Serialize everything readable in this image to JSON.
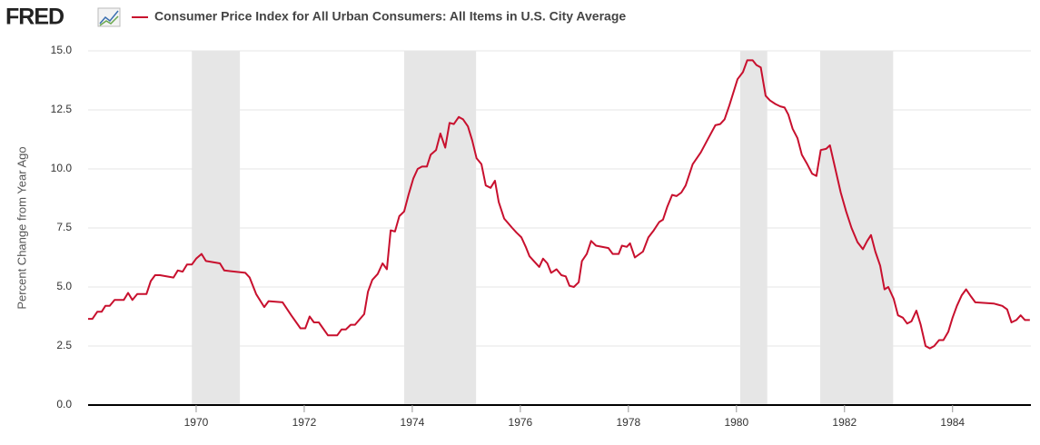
{
  "logo": "FRED",
  "chart_data": {
    "type": "line",
    "ylabel": "Percent Change from Year Ago",
    "x": [
      1968.0,
      1968.08,
      1968.17,
      1968.25,
      1968.32,
      1968.4,
      1968.49,
      1968.57,
      1968.66,
      1968.74,
      1968.82,
      1968.91,
      1968.99,
      1969.08,
      1969.16,
      1969.24,
      1969.33,
      1969.58,
      1969.66,
      1969.75,
      1969.83,
      1969.92,
      1970.0,
      1970.1,
      1970.18,
      1970.44,
      1970.52,
      1970.91,
      1970.99,
      1971.11,
      1971.26,
      1971.34,
      1971.6,
      1971.76,
      1971.93,
      1972.02,
      1972.1,
      1972.18,
      1972.27,
      1972.44,
      1972.61,
      1972.69,
      1972.77,
      1972.86,
      1972.94,
      1973.11,
      1973.18,
      1973.26,
      1973.36,
      1973.45,
      1973.53,
      1973.6,
      1973.68,
      1973.76,
      1973.85,
      1973.93,
      1974.02,
      1974.1,
      1974.18,
      1974.27,
      1974.34,
      1974.44,
      1974.52,
      1974.61,
      1974.69,
      1974.77,
      1974.86,
      1974.94,
      1975.03,
      1975.11,
      1975.19,
      1975.28,
      1975.36,
      1975.45,
      1975.53,
      1975.6,
      1975.7,
      1975.85,
      1975.93,
      1976.02,
      1976.1,
      1976.17,
      1976.25,
      1976.35,
      1976.42,
      1976.5,
      1976.57,
      1976.67,
      1976.76,
      1976.84,
      1976.91,
      1976.99,
      1977.08,
      1977.14,
      1977.23,
      1977.31,
      1977.4,
      1977.63,
      1977.71,
      1977.82,
      1977.88,
      1977.97,
      1978.03,
      1978.12,
      1978.27,
      1978.37,
      1978.47,
      1978.57,
      1978.64,
      1978.72,
      1978.81,
      1978.89,
      1978.98,
      1979.06,
      1979.19,
      1979.34,
      1979.48,
      1979.61,
      1979.7,
      1979.78,
      1979.87,
      1980.02,
      1980.12,
      1980.2,
      1980.3,
      1980.37,
      1980.45,
      1980.54,
      1980.62,
      1980.72,
      1980.81,
      1980.89,
      1980.96,
      1981.04,
      1981.13,
      1981.21,
      1981.31,
      1981.4,
      1981.48,
      1981.56,
      1981.66,
      1981.73,
      1981.83,
      1981.93,
      1982.03,
      1982.13,
      1982.24,
      1982.34,
      1982.42,
      1982.49,
      1982.57,
      1982.66,
      1982.74,
      1982.81,
      1982.91,
      1982.99,
      1983.08,
      1983.16,
      1983.24,
      1983.33,
      1983.41,
      1983.5,
      1983.58,
      1983.66,
      1983.75,
      1983.83,
      1983.92,
      1984.0,
      1984.08,
      1984.17,
      1984.25,
      1984.34,
      1984.42,
      1984.76,
      1984.84,
      1984.92,
      1985.01,
      1985.09,
      1985.18,
      1985.26,
      1985.34,
      1985.43
    ],
    "series": [
      {
        "name": "Consumer Price Index for All Urban Consumers: All Items in U.S. City Average",
        "color": "#c8102e",
        "values": [
          3.65,
          3.65,
          3.95,
          3.95,
          4.2,
          4.2,
          4.45,
          4.45,
          4.45,
          4.75,
          4.45,
          4.7,
          4.7,
          4.7,
          5.25,
          5.5,
          5.5,
          5.4,
          5.7,
          5.65,
          5.95,
          5.95,
          6.2,
          6.4,
          6.1,
          6.0,
          5.7,
          5.6,
          5.4,
          4.7,
          4.15,
          4.4,
          4.35,
          3.8,
          3.25,
          3.25,
          3.75,
          3.5,
          3.5,
          2.95,
          2.95,
          3.2,
          3.2,
          3.4,
          3.4,
          3.85,
          4.8,
          5.3,
          5.55,
          6.0,
          5.75,
          7.4,
          7.35,
          8.0,
          8.2,
          8.9,
          9.6,
          10.0,
          10.1,
          10.1,
          10.6,
          10.8,
          11.5,
          10.9,
          11.95,
          11.9,
          12.2,
          12.1,
          11.8,
          11.2,
          10.45,
          10.2,
          9.3,
          9.2,
          9.5,
          8.6,
          7.9,
          7.5,
          7.3,
          7.1,
          6.7,
          6.3,
          6.1,
          5.85,
          6.2,
          6.0,
          5.6,
          5.75,
          5.5,
          5.45,
          5.05,
          5.0,
          5.2,
          6.1,
          6.4,
          6.95,
          6.75,
          6.65,
          6.4,
          6.4,
          6.75,
          6.7,
          6.85,
          6.25,
          6.5,
          7.1,
          7.4,
          7.75,
          7.85,
          8.4,
          8.9,
          8.85,
          9.0,
          9.3,
          10.2,
          10.7,
          11.3,
          11.85,
          11.9,
          12.1,
          12.7,
          13.8,
          14.1,
          14.6,
          14.6,
          14.4,
          14.3,
          13.1,
          12.9,
          12.75,
          12.65,
          12.6,
          12.3,
          11.7,
          11.3,
          10.6,
          10.2,
          9.8,
          9.7,
          10.8,
          10.85,
          11.0,
          10.0,
          9.0,
          8.2,
          7.5,
          6.9,
          6.6,
          6.95,
          7.2,
          6.5,
          5.9,
          4.9,
          5.0,
          4.5,
          3.8,
          3.7,
          3.45,
          3.55,
          4.0,
          3.4,
          2.5,
          2.4,
          2.5,
          2.75,
          2.75,
          3.1,
          3.7,
          4.2,
          4.65,
          4.9,
          4.6,
          4.35,
          4.3,
          4.25,
          4.2,
          4.05,
          3.5,
          3.6,
          3.8,
          3.6,
          3.6
        ]
      }
    ],
    "recessions": [
      {
        "start": 1969.92,
        "end": 1970.81
      },
      {
        "start": 1973.85,
        "end": 1975.18
      },
      {
        "start": 1980.07,
        "end": 1980.57
      },
      {
        "start": 1981.55,
        "end": 1982.9
      }
    ],
    "recession_color": "#e6e6e6",
    "xlim": [
      1968,
      1985.45
    ],
    "xticks": [
      1970,
      1972,
      1974,
      1976,
      1978,
      1980,
      1982,
      1984
    ],
    "ylim": [
      0,
      15
    ],
    "yticks": [
      {
        "value": 0,
        "label": "0.0"
      },
      2.5,
      {
        "value": 5,
        "label": "5.0"
      },
      7.5,
      {
        "value": 10,
        "label": "10.0"
      },
      12.5,
      {
        "value": 15,
        "label": "15.0"
      }
    ],
    "grid": true
  }
}
